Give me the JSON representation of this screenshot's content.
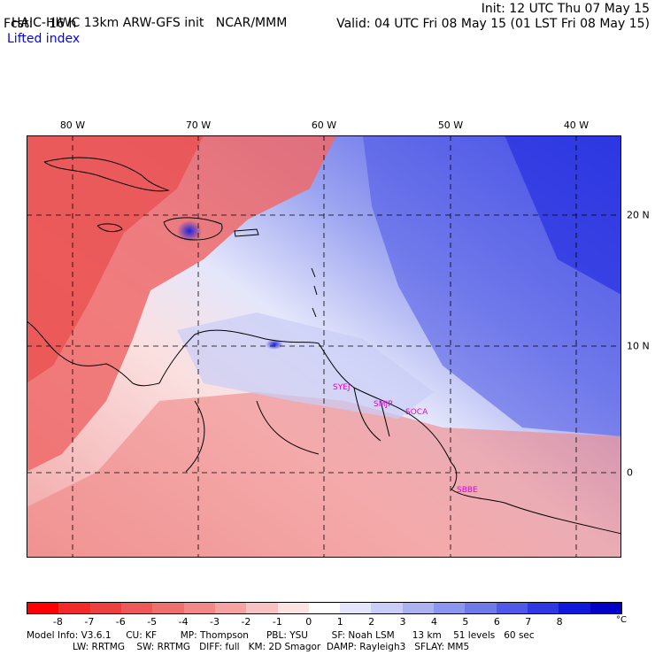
{
  "header": {
    "model": "HAIC-HIWC 13km ARW-GFS init",
    "org": "NCAR/MMM",
    "forecast": "Fcst:    16 h",
    "init": "Init: 12 UTC Thu 07 May 15",
    "valid": "Valid: 04 UTC Fri 08 May 15 (01 LST Fri 08 May 15)",
    "variable": "Lifted index"
  },
  "map": {
    "lon_labels": [
      "80 W",
      "70 W",
      "60 W",
      "50 W",
      "40 W"
    ],
    "lat_labels": [
      "20 N",
      "10 N",
      "0"
    ],
    "stations": [
      "SYEJ",
      "SMJP",
      "SOCA",
      "SBBE"
    ]
  },
  "colorbar": {
    "ticks": [
      "-8",
      "-7",
      "-6",
      "-5",
      "-4",
      "-3",
      "-2",
      "-1",
      "0",
      "1",
      "2",
      "3",
      "4",
      "5",
      "6",
      "7",
      "8"
    ],
    "unit": "°C",
    "colors": [
      "#ff0000",
      "#f42a2a",
      "#ef4040",
      "#ee5858",
      "#ef6e6e",
      "#f28888",
      "#f5a2a2",
      "#f9c2c2",
      "#fde2e2",
      "#ffffff",
      "#e4e6fb",
      "#c9cdf7",
      "#aab2f2",
      "#8c96ee",
      "#6f79ea",
      "#5058e7",
      "#3038e4",
      "#1018de",
      "#0000c8"
    ]
  },
  "footer": {
    "line1": "Model Info: V3.6.1     CU: KF        MP: Thompson      PBL: YSU        SF: Noah LSM      13 km    51 levels   60 sec",
    "line2": "LW: RRTMG    SW: RRTMG   DIFF: full   KM: 2D Smagor  DAMP: Rayleigh3   SFLAY: MM5"
  }
}
